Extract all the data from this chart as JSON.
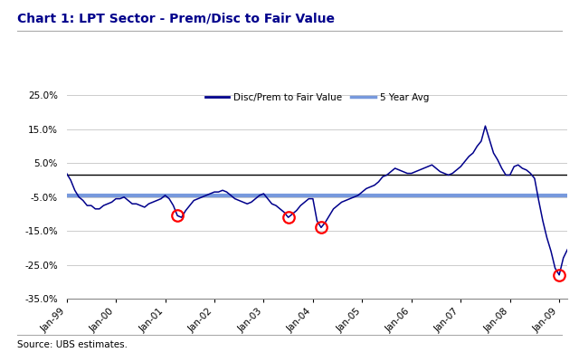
{
  "title": "Chart 1: LPT Sector - Prem/Disc to Fair Value",
  "source_text": "Source: UBS estimates.",
  "legend_line1": "Disc/Prem to Fair Value",
  "legend_line2": "5 Year Avg",
  "ylim": [
    -35.0,
    27.0
  ],
  "yticks": [
    -35.0,
    -25.0,
    -15.0,
    -5.0,
    5.0,
    15.0,
    25.0
  ],
  "ytick_labels": [
    "-35.0%",
    "-25.0%",
    "-15.0%",
    "-5.0%",
    "5.0%",
    "15.0%",
    "25.0%"
  ],
  "five_year_avg": -4.5,
  "zero_line": 1.5,
  "line_color": "#00008B",
  "avg_color": "#7799DD",
  "circle_color": "red",
  "background_color": "#ffffff",
  "grid_color": "#cccccc",
  "title_color": "#00008B",
  "values": [
    2.0,
    0.0,
    -3.0,
    -5.0,
    -6.0,
    -7.5,
    -7.5,
    -8.5,
    -8.5,
    -7.5,
    -7.0,
    -6.5,
    -5.5,
    -5.5,
    -5.0,
    -6.0,
    -7.0,
    -7.0,
    -7.5,
    -8.0,
    -7.0,
    -6.5,
    -6.0,
    -5.5,
    -4.5,
    -5.5,
    -7.5,
    -10.5,
    -11.0,
    -9.0,
    -7.5,
    -6.0,
    -5.5,
    -5.0,
    -4.5,
    -4.0,
    -3.5,
    -3.5,
    -3.0,
    -3.5,
    -4.5,
    -5.5,
    -6.0,
    -6.5,
    -7.0,
    -6.5,
    -5.5,
    -4.5,
    -4.0,
    -5.5,
    -7.0,
    -7.5,
    -8.5,
    -9.5,
    -11.0,
    -10.0,
    -9.0,
    -7.5,
    -6.5,
    -5.5,
    -5.5,
    -12.0,
    -14.0,
    -12.5,
    -10.5,
    -8.5,
    -7.5,
    -6.5,
    -6.0,
    -5.5,
    -5.0,
    -4.5,
    -3.5,
    -2.5,
    -2.0,
    -1.5,
    -0.5,
    1.0,
    1.5,
    2.5,
    3.5,
    3.0,
    2.5,
    2.0,
    2.0,
    2.5,
    3.0,
    3.5,
    4.0,
    4.5,
    3.5,
    2.5,
    2.0,
    1.5,
    2.0,
    3.0,
    4.0,
    5.5,
    7.0,
    8.0,
    10.0,
    11.5,
    16.0,
    12.0,
    8.0,
    6.0,
    3.5,
    1.5,
    1.5,
    4.0,
    4.5,
    3.5,
    3.0,
    2.0,
    0.5,
    -6.0,
    -12.0,
    -17.0,
    -21.0,
    -26.0,
    -28.0,
    -23.0,
    -20.5
  ],
  "circle_indices": [
    27,
    54,
    62,
    120
  ],
  "xtick_positions": [
    0,
    12,
    24,
    36,
    48,
    60,
    72,
    84,
    96,
    108,
    120
  ],
  "xtick_labels": [
    "Jan-99",
    "Jan-00",
    "Jan-01",
    "Jan-02",
    "Jan-03",
    "Jan-04",
    "Jan-05",
    "Jan-06",
    "Jan-07",
    "Jan-08",
    "Jan-09"
  ]
}
